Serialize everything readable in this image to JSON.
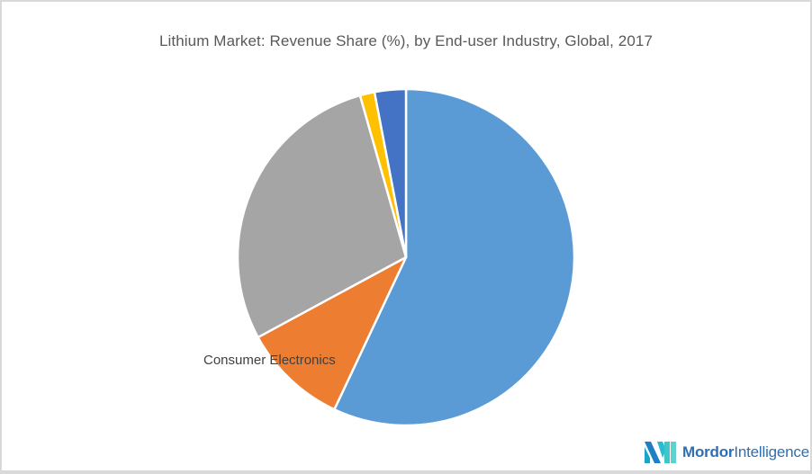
{
  "chart": {
    "title": "Lithium Market: Revenue Share (%), by End-user Industry, Global, 2017",
    "visible_label": "Consumer Electronics"
  },
  "branding": {
    "logo_bold": "Mordor",
    "logo_light": "Intelligence"
  },
  "chart_data": {
    "type": "pie",
    "title": "Lithium Market: Revenue Share (%), by End-user Industry, Global, 2017",
    "start_angle_deg": 0,
    "direction": "clockwise",
    "slices": [
      {
        "label": "",
        "value": 57.0,
        "color": "#5b9bd5"
      },
      {
        "label": "Consumer Electronics",
        "value": 10.1,
        "color": "#ed7d31"
      },
      {
        "label": "",
        "value": 28.5,
        "color": "#a5a5a5"
      },
      {
        "label": "",
        "value": 1.4,
        "color": "#ffc000"
      },
      {
        "label": "",
        "value": 3.0,
        "color": "#4472c4"
      }
    ],
    "legend": "none",
    "data_labels": [
      "Consumer Electronics"
    ]
  }
}
